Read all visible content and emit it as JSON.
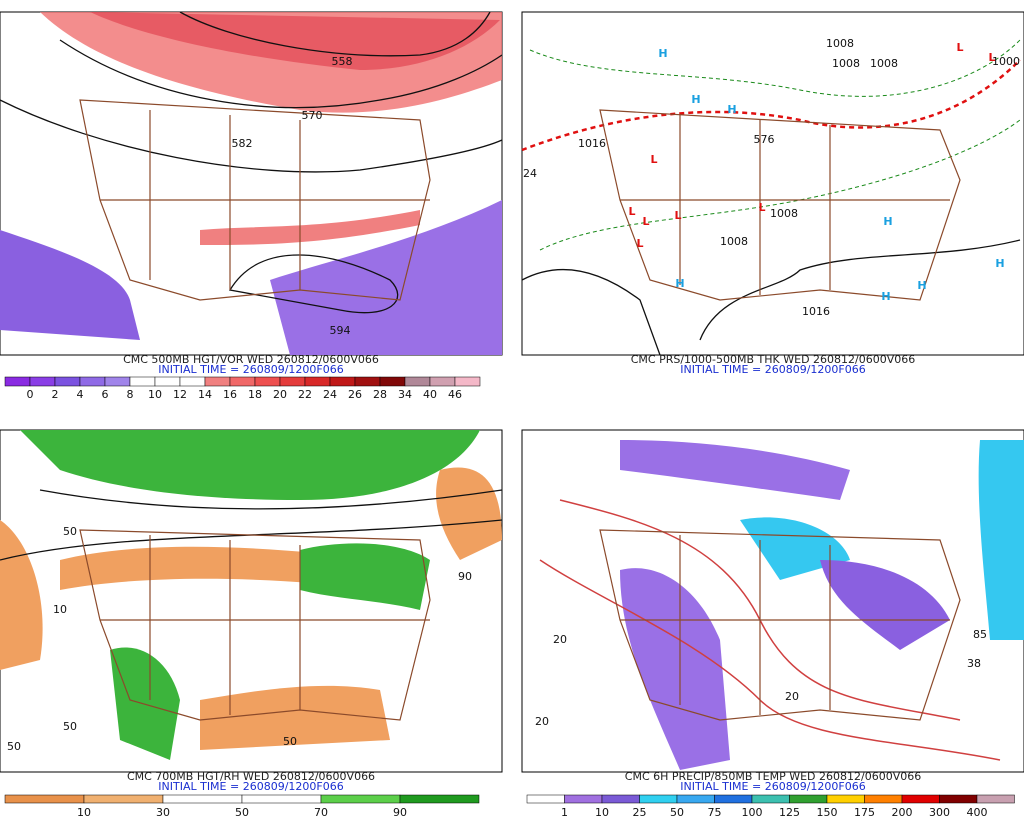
{
  "panels": [
    {
      "caption": "CMC 500MB HGT/VOR WED 260812/0600V066",
      "initial_time": "INITIAL TIME = 260809/1200F066",
      "map_labels": [
        "558",
        "570",
        "582",
        "594"
      ],
      "colorbar": {
        "labels": [
          "0",
          "2",
          "4",
          "6",
          "8",
          "10",
          "12",
          "14",
          "16",
          "18",
          "20",
          "22",
          "24",
          "26",
          "28",
          "34",
          "40",
          "46"
        ],
        "colors": [
          "#8a2be2",
          "#8a3ee6",
          "#7b52e0",
          "#8f6ae6",
          "#a084ea",
          "#ffffff",
          "#ffffff",
          "#ffffff",
          "#f08080",
          "#f06868",
          "#ee5050",
          "#e43c3c",
          "#d82828",
          "#c01818",
          "#a01010",
          "#800808",
          "#b08898",
          "#d0a0b0",
          "#f4b8c8"
        ]
      }
    },
    {
      "caption": "CMC PRS/1000-500MB THK WED 260812/0600V066",
      "initial_time": "INITIAL TIME = 260809/1200F066",
      "map_labels": [
        "H",
        "H",
        "H",
        "H",
        "H",
        "H",
        "H",
        "H",
        "L",
        "L",
        "L",
        "L",
        "L",
        "L",
        "L",
        "L",
        "1008",
        "1008",
        "1008",
        "1016",
        "576",
        "24",
        "1016",
        "1008",
        "1008",
        "1000"
      ]
    },
    {
      "caption": "CMC 700MB HGT/RH WED 260812/0600V066",
      "initial_time": "INITIAL TIME = 260809/1200F066",
      "map_labels": [
        "50",
        "10",
        "50",
        "50",
        "90",
        "50"
      ],
      "colorbar": {
        "labels": [
          "10",
          "30",
          "50",
          "70",
          "90"
        ],
        "colors": [
          "#e8914a",
          "#f0b070",
          "#ffffff",
          "#ffffff",
          "#5ccf4a",
          "#1f9a1f"
        ]
      }
    },
    {
      "caption": "CMC 6H PRECIP/850MB TEMP WED 260812/0600V066",
      "initial_time": "INITIAL TIME = 260809/1200F066",
      "map_labels": [
        "20",
        "20",
        "85",
        "38",
        "20"
      ],
      "colorbar": {
        "labels": [
          "1",
          "10",
          "25",
          "50",
          "75",
          "100",
          "125",
          "150",
          "175",
          "200",
          "300",
          "400"
        ],
        "colors": [
          "#ffffff",
          "#a070e0",
          "#7a5ad6",
          "#30d0f0",
          "#38a8f0",
          "#2070e0",
          "#3cc0b0",
          "#30a030",
          "#ffd000",
          "#ff8000",
          "#e00000",
          "#800000",
          "#c8a0b0"
        ]
      }
    }
  ]
}
